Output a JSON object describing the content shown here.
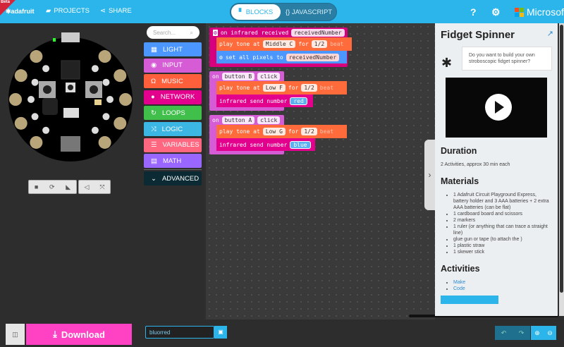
{
  "header": {
    "beta": "Beta",
    "logo": "adafruit",
    "projects": "PROJECTS",
    "share": "SHARE",
    "blocks": "BLOCKS",
    "javascript": "{} JAVASCRIPT",
    "brand": "Microsoft",
    "accent": "#2cb5ea"
  },
  "toolbox": {
    "search_placeholder": "Search...",
    "categories": [
      {
        "label": "LIGHT",
        "color": "#4c97ff",
        "icon": "grid-icon"
      },
      {
        "label": "INPUT",
        "color": "#d65cd6",
        "icon": "target-icon"
      },
      {
        "label": "MUSIC",
        "color": "#ff5f3b",
        "icon": "headphones-icon"
      },
      {
        "label": "NETWORK",
        "color": "#e3008c",
        "icon": "chat-icon"
      },
      {
        "label": "LOOPS",
        "color": "#40bf4a",
        "icon": "refresh-icon"
      },
      {
        "label": "LOGIC",
        "color": "#3cb6e3",
        "icon": "shuffle-icon"
      },
      {
        "label": "VARIABLES",
        "color": "#ff6680",
        "icon": "list-icon"
      },
      {
        "label": "MATH",
        "color": "#9966ff",
        "icon": "calculator-icon"
      }
    ],
    "advanced": "ADVANCED"
  },
  "blocks": {
    "b1": {
      "head": "on infrared received",
      "var": "receivedNumber",
      "tone": "play tone at",
      "note": "Middle C",
      "for": "for",
      "beat": "1/2",
      "beat_label": "beat",
      "pixels": "set all pixels to",
      "pixvar": "receivedNumber"
    },
    "b2": {
      "on": "on",
      "button": "button B",
      "click": "click",
      "tone": "play tone at",
      "note": "Low F",
      "for": "for",
      "beat": "1/2",
      "beat_label": "beat",
      "send": "infrared send number",
      "value": "red"
    },
    "b3": {
      "on": "on",
      "button": "button A",
      "click": "click",
      "tone": "play tone at",
      "note": "Low G",
      "for": "for",
      "beat": "1/2",
      "beat_label": "beat",
      "send": "infrared send number",
      "value": "blue"
    }
  },
  "tutorial": {
    "title": "Fidget Spinner",
    "bubble": "Do you want to build your own stroboscopic fidget spinner?",
    "duration_h": "Duration",
    "duration": "2 Activities, approx 30 min each",
    "materials_h": "Materials",
    "materials": [
      "1 Adafruit Circuit Playground Express, battery holder and 3 AAA batteries + 2 extra AAA batteries (can be flat)",
      "1 cardboard board and scissors",
      "2 markers",
      "1 ruler (or anything that can trace a straight line)",
      "glue gun or tape (to attach the )",
      "1 plastic straw",
      "1 skewer stick"
    ],
    "activities_h": "Activities",
    "activities": [
      "Make",
      "Code"
    ]
  },
  "bottom": {
    "download": "Download",
    "project_name": "bluorred"
  }
}
